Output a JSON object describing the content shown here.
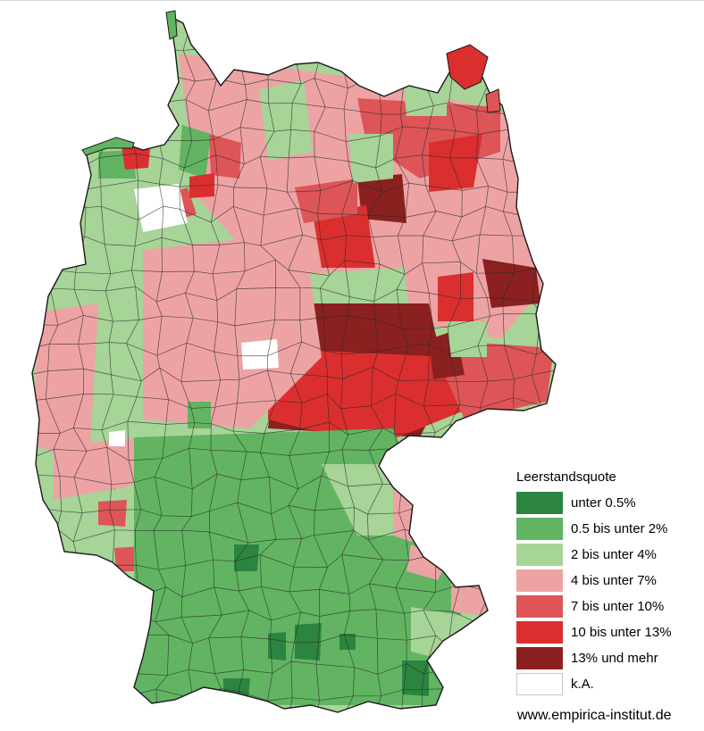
{
  "map": {
    "legend": {
      "title": "Leerstandsquote",
      "items": [
        {
          "label": "unter 0.5%",
          "color": "#2b8540"
        },
        {
          "label": "0.5 bis unter 2%",
          "color": "#62b462"
        },
        {
          "label": "2 bis unter 4%",
          "color": "#a7d497"
        },
        {
          "label": "4 bis unter 7%",
          "color": "#eda3a4"
        },
        {
          "label": "7 bis unter 10%",
          "color": "#de5557"
        },
        {
          "label": "10 bis unter 13%",
          "color": "#db2f2f"
        },
        {
          "label": "13% und mehr",
          "color": "#8b2020"
        },
        {
          "label": "k.A.",
          "color": "#ffffff"
        }
      ]
    },
    "credit": "www.empirica-institut.de"
  }
}
